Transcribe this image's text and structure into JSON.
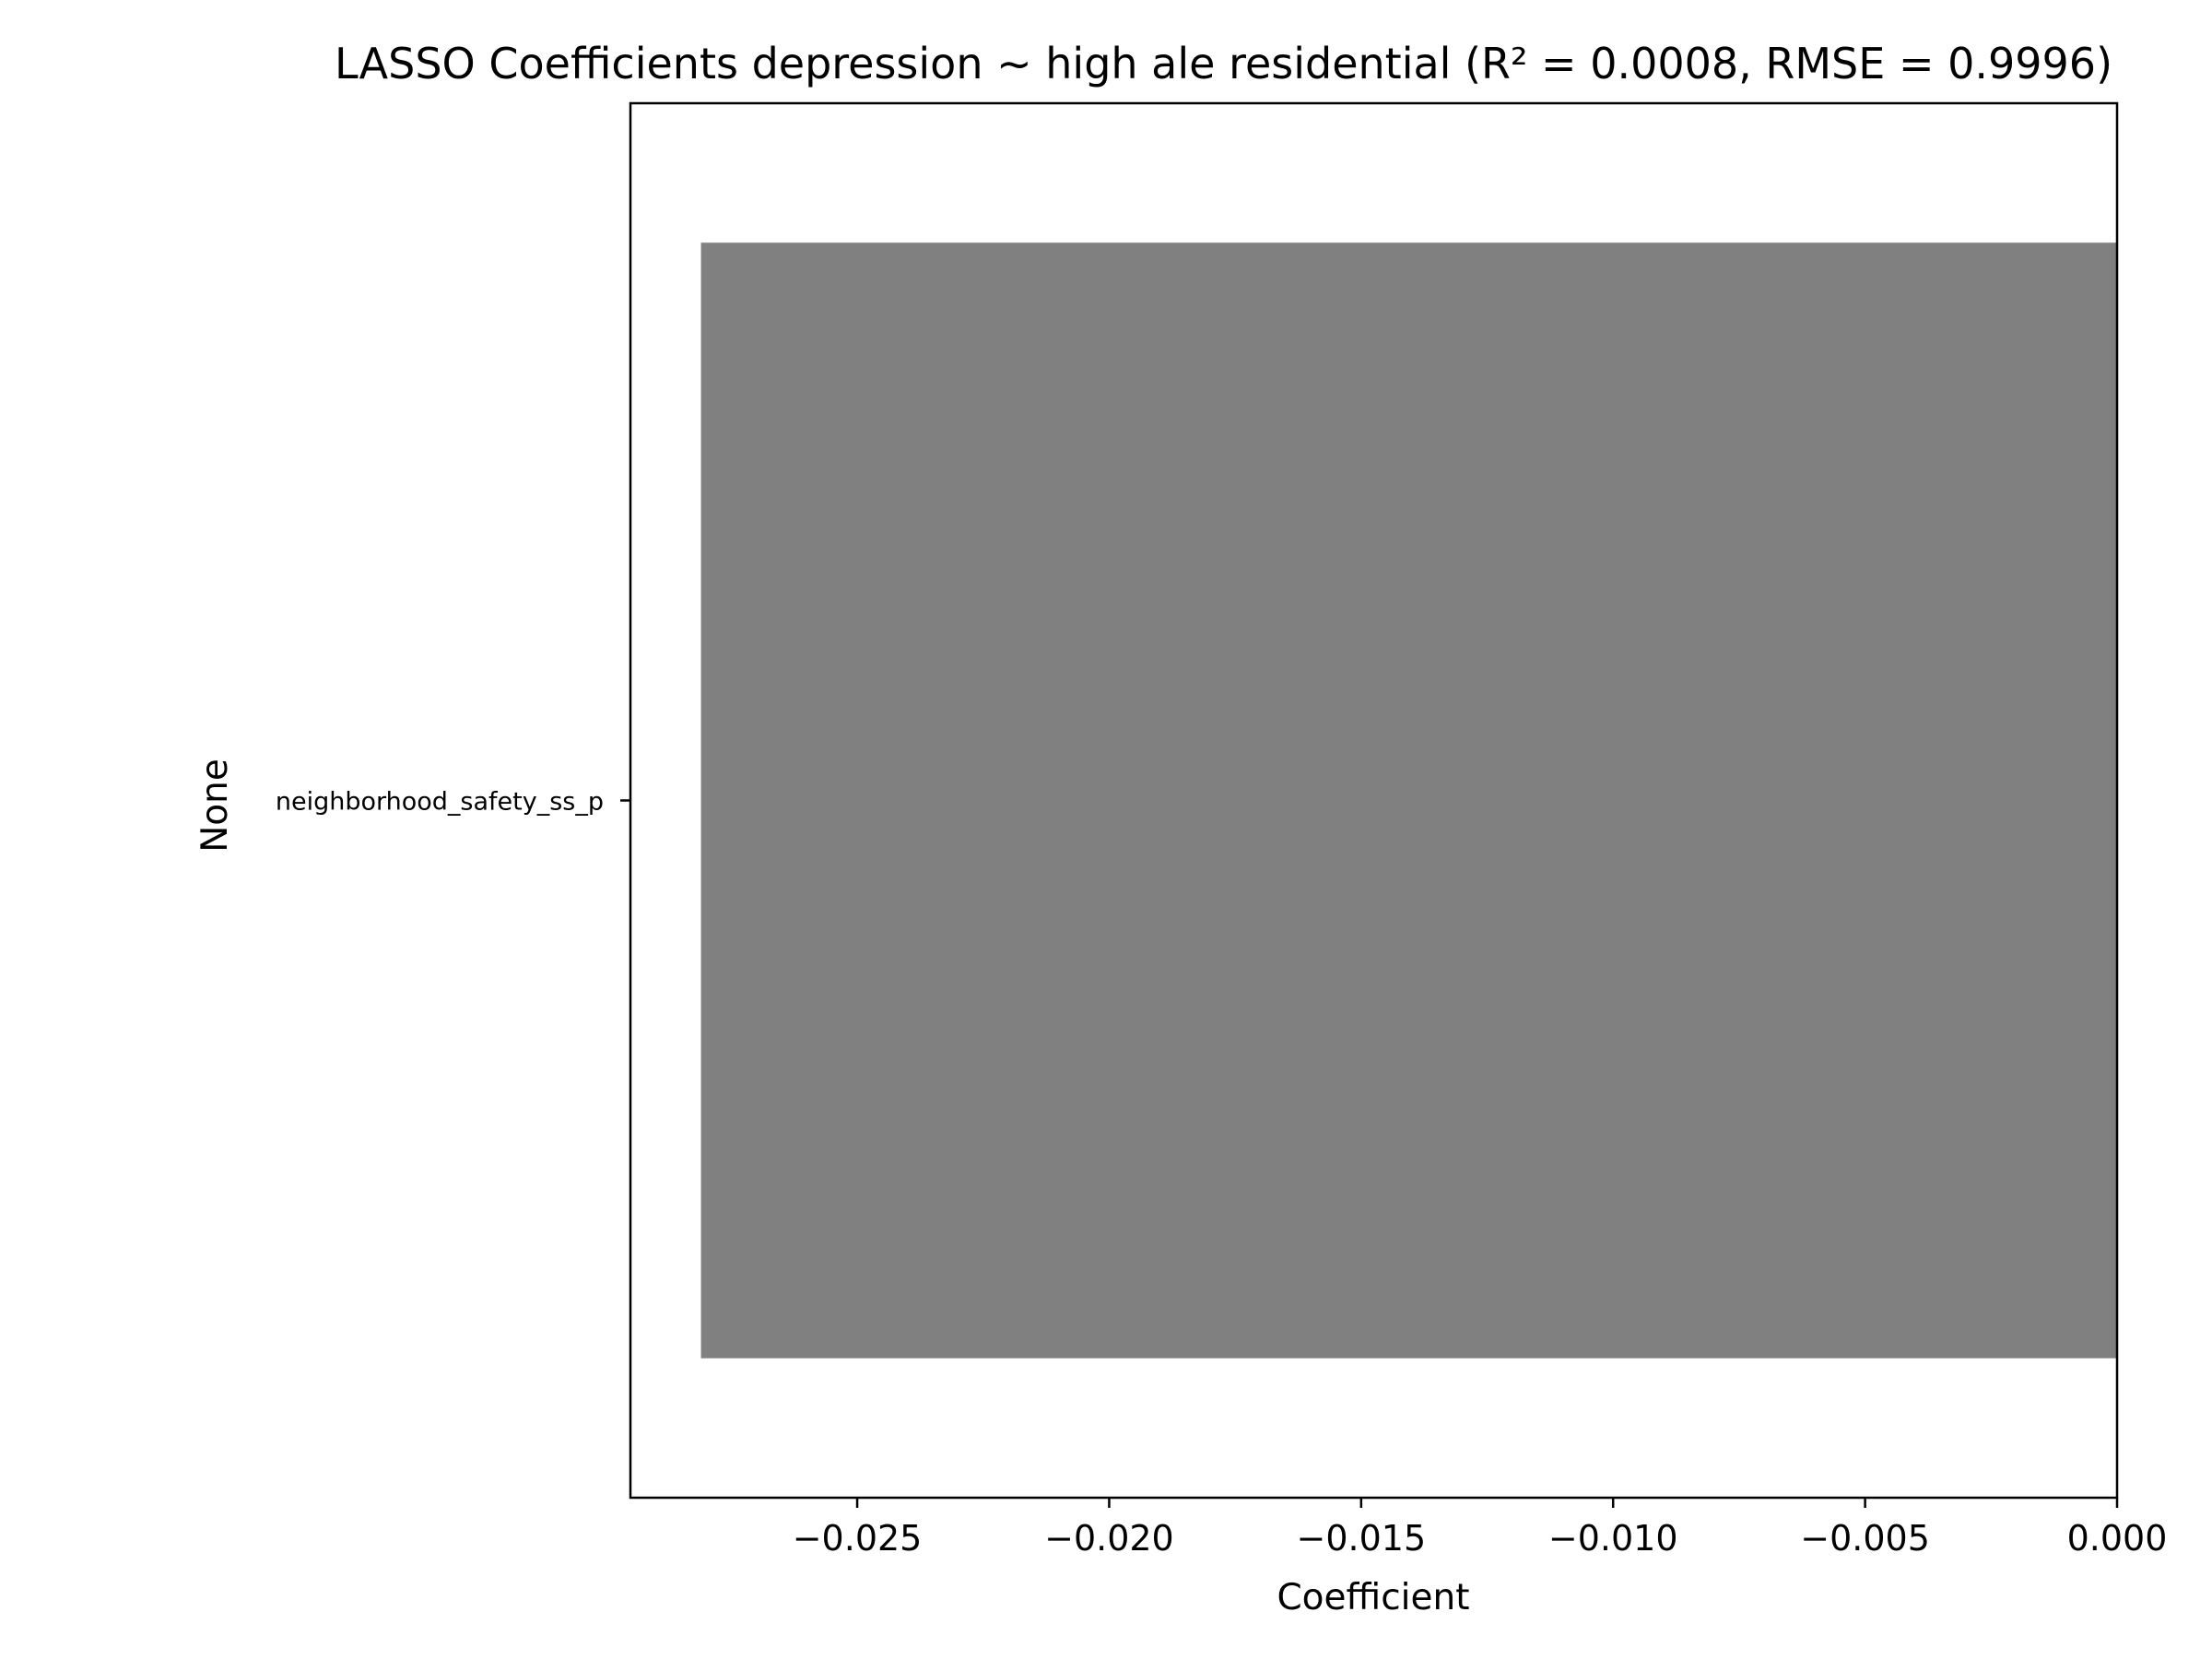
{
  "chart_data": {
    "type": "bar",
    "orientation": "horizontal",
    "title": "LASSO Coefficients depression ~ high ale residential (R² = 0.0008, RMSE = 0.9996)",
    "xlabel": "Coefficient",
    "ylabel": "None",
    "categories": [
      "neighborhood_safety_ss_p"
    ],
    "values": [
      -0.0281
    ],
    "xlim": [
      -0.0295,
      0.0
    ],
    "xticks": [
      -0.025,
      -0.02,
      -0.015,
      -0.01,
      -0.005,
      0.0
    ],
    "xtick_labels": [
      "−0.025",
      "−0.020",
      "−0.015",
      "−0.010",
      "−0.005",
      "0.000"
    ],
    "bar_color": "#808080",
    "grid": false,
    "legend": "none"
  }
}
